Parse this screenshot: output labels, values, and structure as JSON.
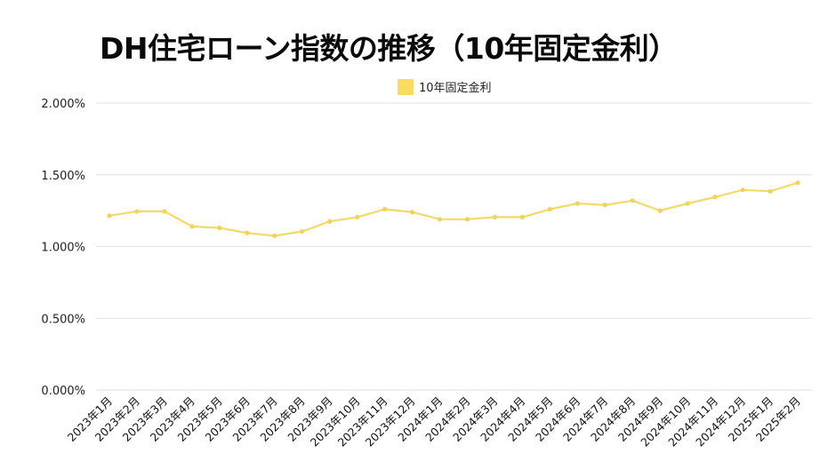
{
  "header": {
    "title": "DH住宅ローン指数の推移（10年固定金利）"
  },
  "legend": {
    "label": "10年固定金利",
    "color": "#F9DB62"
  },
  "colors": {
    "line": "#F4D96A",
    "marker": "#F2D35A",
    "grid": "#E2E2E2"
  },
  "chart_data": {
    "type": "line",
    "title": "DH住宅ローン指数の推移（10年固定金利）",
    "xlabel": "",
    "ylabel": "",
    "ylim": [
      0,
      2.0
    ],
    "yticks": [
      "0.000%",
      "0.500%",
      "1.000%",
      "1.500%",
      "2.000%"
    ],
    "ytick_values": [
      0,
      0.5,
      1.0,
      1.5,
      2.0
    ],
    "grid": true,
    "legend_position": "top-center",
    "categories": [
      "2023年1月",
      "2023年2月",
      "2023年3月",
      "2023年4月",
      "2023年5月",
      "2023年6月",
      "2023年7月",
      "2023年8月",
      "2023年9月",
      "2023年10月",
      "2023年11月",
      "2023年12月",
      "2024年1月",
      "2024年2月",
      "2024年3月",
      "2024年4月",
      "2024年5月",
      "2024年6月",
      "2024年7月",
      "2024年8月",
      "2024年9月",
      "2024年10月",
      "2024年11月",
      "2024年12月",
      "2025年1月",
      "2025年2月"
    ],
    "series": [
      {
        "name": "10年固定金利",
        "values": [
          1.215,
          1.245,
          1.245,
          1.14,
          1.13,
          1.095,
          1.075,
          1.105,
          1.175,
          1.205,
          1.26,
          1.24,
          1.19,
          1.19,
          1.205,
          1.205,
          1.26,
          1.3,
          1.29,
          1.32,
          1.25,
          1.3,
          1.345,
          1.395,
          1.385,
          1.445
        ]
      }
    ]
  }
}
